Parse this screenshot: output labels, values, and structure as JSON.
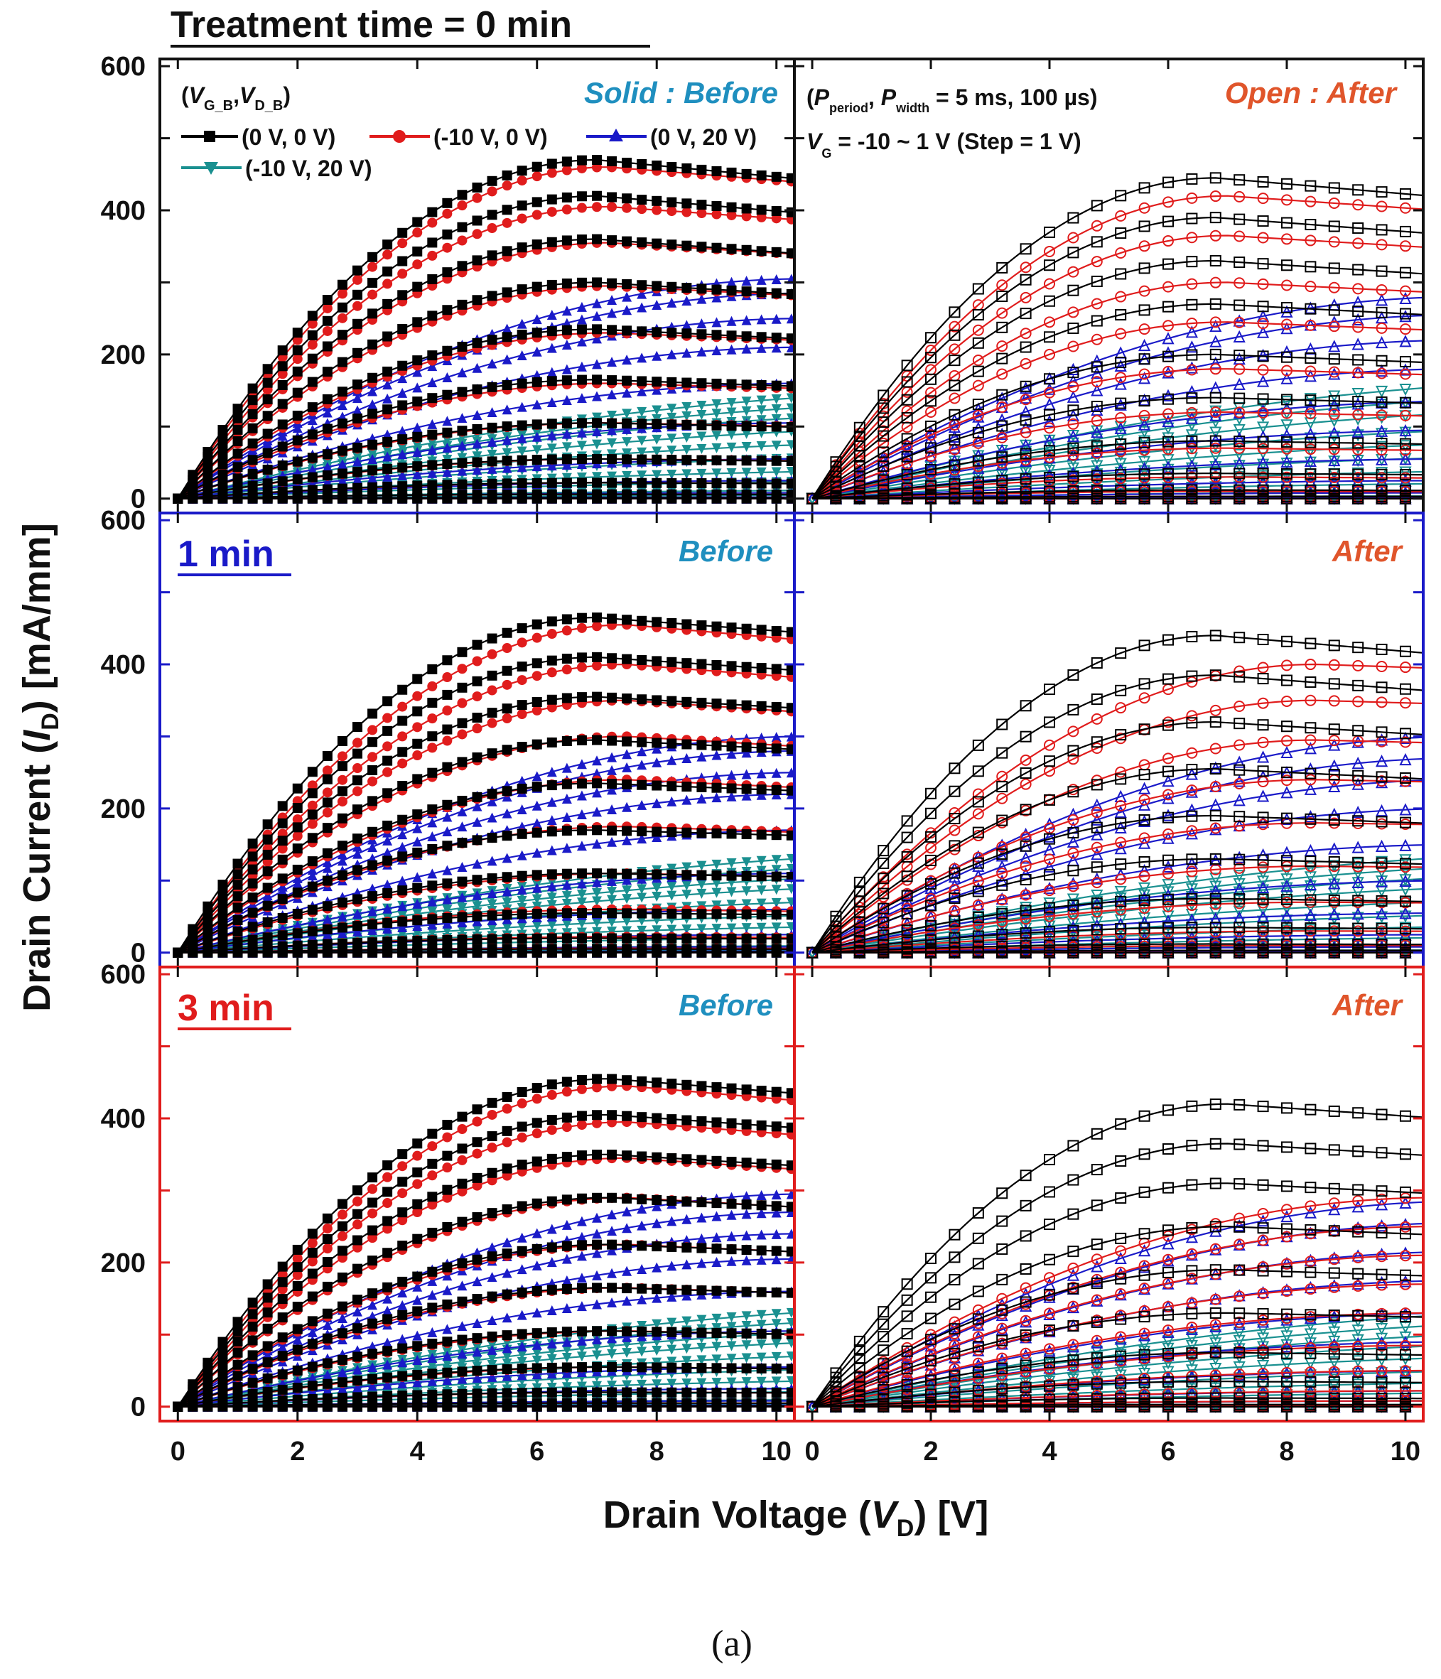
{
  "figure_caption": "(a)",
  "chart_data": {
    "type": "line",
    "title": "Treatment time = 0 min",
    "xlabel": "Drain Voltage (V_D) [V]",
    "xlabel_parts": {
      "pre": "Drain Voltage (",
      "var": "V",
      "sub": "D",
      "post": ") [V]"
    },
    "ylabel": "Drain Current (I_D) [mA/mm]",
    "ylabel_parts": {
      "pre": "Drain Current (",
      "var": "I",
      "sub": "D",
      "post": ") [mA/mm]"
    },
    "xlim": [
      -0.3,
      10.3
    ],
    "ylim": [
      -20,
      610
    ],
    "x_ticks": [
      "0",
      "2",
      "4",
      "6",
      "8",
      "10"
    ],
    "y_ticks": [
      "0",
      "200",
      "400",
      "600"
    ],
    "legend": {
      "header": {
        "pre": "(",
        "v1": "V",
        "s1": "G_B",
        "comma": ",",
        "v2": "V",
        "s2": "D_B",
        "post": ")"
      },
      "entries": [
        {
          "label": "(0 V, 0 V)",
          "color": "#000000",
          "marker": "square"
        },
        {
          "label": "(-10 V, 0 V)",
          "color": "#e01c1c",
          "marker": "circle"
        },
        {
          "label": "(0 V, 20 V)",
          "color": "#1a1ac8",
          "marker": "triangle-up"
        },
        {
          "label": "(-10 V, 20 V)",
          "color": "#1a9090",
          "marker": "triangle-down"
        }
      ],
      "solid_note": "Solid : Before",
      "open_note": "Open : After",
      "pulse_info": {
        "pre": "(",
        "v1": "P",
        "s1": "period",
        "comma": ", ",
        "v2": "P",
        "s2": "width",
        "post": " = 5 ms, 100 µs)"
      },
      "gate_info": {
        "var": "V",
        "sub": "G",
        "post": " = -10 ~ 1 V (Step = 1 V)"
      }
    },
    "gate_voltage_steps": [
      1,
      0,
      -1,
      -2,
      -3,
      -4,
      -5,
      -6,
      -7,
      -8,
      -9,
      -10
    ],
    "panels": [
      {
        "id": "0min-before",
        "row_label": "",
        "tag": "Solid : Before",
        "state": "before",
        "series": [
          {
            "name": "(0 V, 0 V)",
            "color": "#000000",
            "sat": [
              470,
              420,
              360,
              300,
              235,
              165,
              105,
              55,
              22,
              6,
              1,
              0
            ],
            "peak_x": 7.0,
            "droop": 0.05
          },
          {
            "name": "(-10 V, 0 V)",
            "color": "#e01c1c",
            "sat": [
              460,
              405,
              355,
              295,
              230,
              160,
              105,
              55,
              22,
              6,
              1,
              0
            ],
            "peak_x": 7.2,
            "droop": 0.04
          },
          {
            "name": "(0 V, 20 V)",
            "color": "#1a1ac8",
            "sat": [
              305,
              285,
              250,
              210,
              160,
              105,
              55,
              25,
              8,
              2,
              0,
              0
            ],
            "peak_x": 10.5,
            "droop": 0
          },
          {
            "name": "(-10 V, 20 V)",
            "color": "#1a9090",
            "sat": [
              150,
              135,
              120,
              100,
              80,
              60,
              40,
              25,
              12,
              5,
              1,
              0
            ],
            "peak_x": 14,
            "droop": 0
          }
        ]
      },
      {
        "id": "0min-after",
        "row_label": "",
        "tag": "Open : After",
        "state": "after",
        "series": [
          {
            "name": "(0 V, 0 V)",
            "color": "#000000",
            "sat": [
              445,
              390,
              330,
              270,
              200,
              140,
              80,
              35,
              12,
              3,
              0,
              0
            ],
            "peak_x": 6.8,
            "droop": 0.05
          },
          {
            "name": "(-10 V, 0 V)",
            "color": "#e01c1c",
            "sat": [
              420,
              365,
              300,
              245,
              180,
              120,
              70,
              30,
              10,
              3,
              0,
              0
            ],
            "peak_x": 7.0,
            "droop": 0.04
          },
          {
            "name": "(0 V, 20 V)",
            "color": "#1a1ac8",
            "sat": [
              280,
              255,
              220,
              180,
              135,
              95,
              55,
              25,
              8,
              2,
              0,
              0
            ],
            "peak_x": 11,
            "droop": 0
          },
          {
            "name": "(-10 V, 20 V)",
            "color": "#1a9090",
            "sat": [
              165,
              145,
              125,
              100,
              80,
              60,
              40,
              22,
              10,
              4,
              1,
              0
            ],
            "peak_x": 14,
            "droop": 0
          }
        ]
      },
      {
        "id": "1min-before",
        "row_label": "1 min",
        "row_color": "#1a1ac8",
        "tag": "Before",
        "state": "before",
        "series": [
          {
            "name": "(0 V, 0 V)",
            "color": "#000000",
            "sat": [
              465,
              410,
              355,
              295,
              235,
              170,
              110,
              55,
              20,
              5,
              1,
              0
            ],
            "peak_x": 7.0,
            "droop": 0.04
          },
          {
            "name": "(-10 V, 0 V)",
            "color": "#e01c1c",
            "sat": [
              455,
              400,
              350,
              300,
              240,
              175,
              110,
              60,
              22,
              6,
              1,
              0
            ],
            "peak_x": 7.5,
            "droop": 0.04
          },
          {
            "name": "(0 V, 20 V)",
            "color": "#1a1ac8",
            "sat": [
              300,
              280,
              250,
              220,
              170,
              110,
              60,
              25,
              8,
              2,
              0,
              0
            ],
            "peak_x": 10.5,
            "droop": 0
          },
          {
            "name": "(-10 V, 20 V)",
            "color": "#1a9090",
            "sat": [
              140,
              125,
              110,
              95,
              75,
              55,
              38,
              22,
              10,
              4,
              1,
              0
            ],
            "peak_x": 14,
            "droop": 0
          }
        ]
      },
      {
        "id": "1min-after",
        "row_label": "",
        "tag": "After",
        "state": "after",
        "series": [
          {
            "name": "(0 V, 0 V)",
            "color": "#000000",
            "sat": [
              440,
              385,
              320,
              255,
              190,
              130,
              75,
              35,
              12,
              3,
              0,
              0
            ],
            "peak_x": 6.8,
            "droop": 0.05
          },
          {
            "name": "(-10 V, 0 V)",
            "color": "#e01c1c",
            "sat": [
              400,
              350,
              295,
              240,
              180,
              120,
              70,
              30,
              10,
              3,
              0,
              0
            ],
            "peak_x": 8.5,
            "droop": 0.01
          },
          {
            "name": "(0 V, 20 V)",
            "color": "#1a1ac8",
            "sat": [
              300,
              270,
              240,
              200,
              150,
              100,
              55,
              25,
              8,
              2,
              0,
              0
            ],
            "peak_x": 11,
            "droop": 0
          },
          {
            "name": "(-10 V, 20 V)",
            "color": "#1a9090",
            "sat": [
              140,
              125,
              110,
              95,
              75,
              55,
              38,
              22,
              10,
              4,
              1,
              0
            ],
            "peak_x": 14,
            "droop": 0
          }
        ]
      },
      {
        "id": "3min-before",
        "row_label": "3 min",
        "row_color": "#e01c1c",
        "tag": "Before",
        "state": "before",
        "series": [
          {
            "name": "(0 V, 0 V)",
            "color": "#000000",
            "sat": [
              455,
              405,
              350,
              290,
              225,
              165,
              105,
              55,
              20,
              5,
              1,
              0
            ],
            "peak_x": 7.2,
            "droop": 0.04
          },
          {
            "name": "(-10 V, 0 V)",
            "color": "#e01c1c",
            "sat": [
              445,
              395,
              345,
              290,
              225,
              165,
              105,
              55,
              20,
              5,
              1,
              0
            ],
            "peak_x": 7.5,
            "droop": 0.04
          },
          {
            "name": "(0 V, 20 V)",
            "color": "#1a1ac8",
            "sat": [
              295,
              270,
              240,
              205,
              160,
              105,
              55,
              25,
              8,
              2,
              0,
              0
            ],
            "peak_x": 10.5,
            "droop": 0
          },
          {
            "name": "(-10 V, 20 V)",
            "color": "#1a9090",
            "sat": [
              140,
              125,
              110,
              95,
              75,
              55,
              38,
              22,
              10,
              4,
              1,
              0
            ],
            "peak_x": 14,
            "droop": 0
          }
        ]
      },
      {
        "id": "3min-after",
        "row_label": "",
        "tag": "After",
        "state": "after",
        "series": [
          {
            "name": "(0 V, 0 V)",
            "color": "#000000",
            "sat": [
              420,
              365,
              310,
              250,
              190,
              130,
              75,
              35,
              12,
              3,
              0,
              0
            ],
            "peak_x": 7.0,
            "droop": 0.04
          },
          {
            "name": "(-10 V, 0 V)",
            "color": "#e01c1c",
            "sat": [
              290,
              250,
              210,
              170,
              130,
              85,
              50,
              22,
              8,
              2,
              0,
              0
            ],
            "peak_x": 10.5,
            "droop": 0
          },
          {
            "name": "(0 V, 20 V)",
            "color": "#1a1ac8",
            "sat": [
              285,
              255,
              215,
              175,
              130,
              90,
              50,
              22,
              8,
              2,
              0,
              0
            ],
            "peak_x": 11,
            "droop": 0
          },
          {
            "name": "(-10 V, 20 V)",
            "color": "#1a9090",
            "sat": [
              135,
              120,
              105,
              90,
              72,
              52,
              35,
              20,
              9,
              3,
              1,
              0
            ],
            "peak_x": 14,
            "droop": 0
          }
        ]
      }
    ]
  }
}
